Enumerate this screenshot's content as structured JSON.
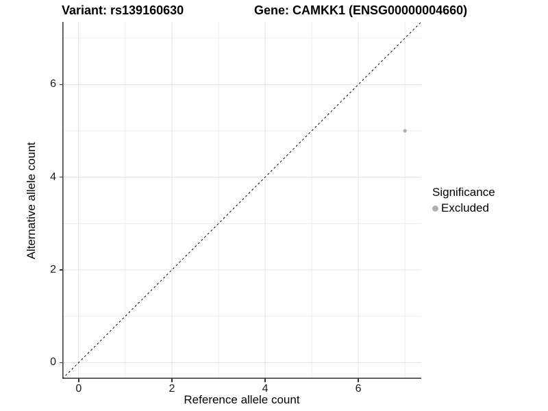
{
  "titles": {
    "variant": "Variant: rs139160630",
    "gene": "Gene: CAMKK1 (ENSG00000004660)"
  },
  "chart_data": {
    "type": "scatter",
    "title": "Variant: rs139160630   Gene: CAMKK1 (ENSG00000004660)",
    "xlabel": "Reference allele count",
    "ylabel": "Alternative allele count",
    "xlim": [
      -0.35,
      7.35
    ],
    "ylim": [
      -0.35,
      7.35
    ],
    "x_ticks": [
      0,
      2,
      4,
      6
    ],
    "y_ticks": [
      0,
      2,
      4,
      6
    ],
    "grid": {
      "major": [
        0,
        2,
        4,
        6
      ],
      "minor": [
        1,
        3,
        5,
        7
      ]
    },
    "points": [
      {
        "x": 7,
        "y": 5,
        "series": "Excluded"
      }
    ],
    "identity_line": {
      "equation": "y = x",
      "style": "dashed"
    },
    "legend": {
      "position": "right",
      "title": "Significance",
      "entries": [
        {
          "label": "Excluded",
          "color": "#b0b0b0"
        }
      ]
    },
    "colors": {
      "point": "#b0b0b0",
      "identity_line": "#000000",
      "grid_major": "#e2e2e2",
      "grid_minor": "#ededed",
      "axis_line": "#404040",
      "tick_mark": "#333333"
    }
  }
}
